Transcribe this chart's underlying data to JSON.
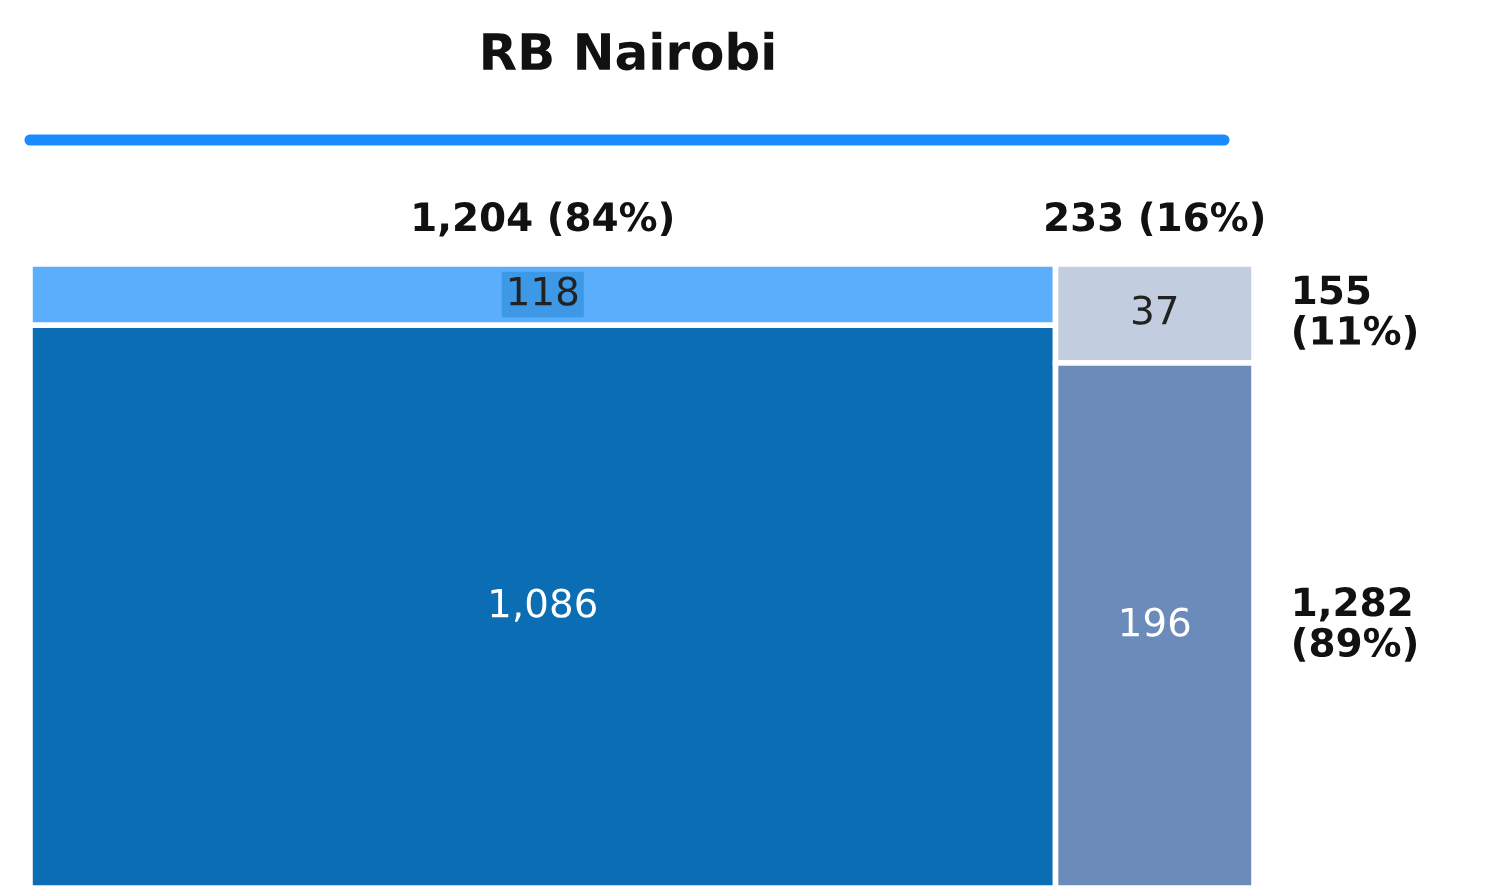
{
  "chart_data": {
    "type": "heatmap",
    "title": "RB Nairobi",
    "categories": [
      "1,204 (84%)",
      "233 (16%)"
    ],
    "y_categories": [
      "155\n(11%)",
      "1,282\n(89%)"
    ],
    "cells": [
      [
        118,
        37
      ],
      [
        1086,
        196
      ]
    ],
    "cell_labels": [
      [
        "118",
        "37"
      ],
      [
        "1,086",
        "196"
      ]
    ],
    "colors": [
      [
        "#5aaefc",
        "#c3cde0"
      ],
      [
        "#0b6db3",
        "#6b8bba"
      ]
    ]
  }
}
